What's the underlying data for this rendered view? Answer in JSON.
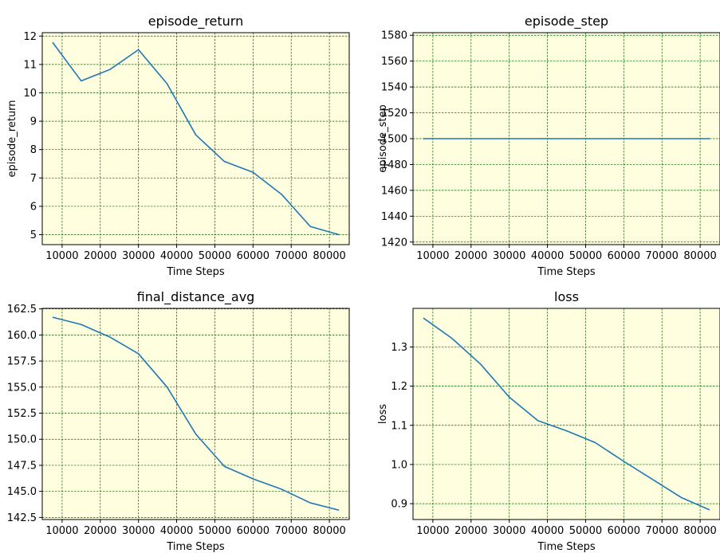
{
  "chart_data": [
    {
      "type": "line",
      "title": "episode_return",
      "xlabel": "Time Steps",
      "ylabel": "episode_return",
      "x": [
        7500,
        15000,
        22500,
        30000,
        37500,
        45000,
        52500,
        60000,
        67500,
        75000,
        82500
      ],
      "series": [
        {
          "values": [
            11.78,
            10.42,
            10.82,
            11.52,
            10.32,
            8.52,
            7.58,
            7.2,
            6.42,
            5.29,
            5.0
          ]
        }
      ],
      "xlim": [
        4800,
        85200
      ],
      "ylim": [
        4.65,
        12.12
      ],
      "xticks": [
        10000,
        20000,
        30000,
        40000,
        50000,
        60000,
        70000,
        80000
      ],
      "yticks": [
        5,
        6,
        7,
        8,
        9,
        10,
        11,
        12
      ],
      "grid": true,
      "colors": {
        "line": "#1f77b4",
        "plot_bg": "#ffffe0",
        "grid": "#006400"
      }
    },
    {
      "type": "line",
      "title": "episode_step",
      "xlabel": "Time Steps",
      "ylabel": "episode_step",
      "x": [
        7500,
        15000,
        22500,
        30000,
        37500,
        45000,
        52500,
        60000,
        67500,
        75000,
        82500
      ],
      "series": [
        {
          "values": [
            1500,
            1500,
            1500,
            1500,
            1500,
            1500,
            1500,
            1500,
            1500,
            1500,
            1500
          ]
        }
      ],
      "xlim": [
        4800,
        85200
      ],
      "ylim": [
        1418,
        1582
      ],
      "xticks": [
        10000,
        20000,
        30000,
        40000,
        50000,
        60000,
        70000,
        80000
      ],
      "yticks": [
        1420,
        1440,
        1460,
        1480,
        1500,
        1520,
        1540,
        1560,
        1580
      ],
      "grid": true,
      "colors": {
        "line": "#1f77b4",
        "plot_bg": "#ffffe0",
        "grid": "#006400"
      }
    },
    {
      "type": "line",
      "title": "final_distance_avg",
      "xlabel": "Time Steps",
      "ylabel": "",
      "x": [
        7500,
        15000,
        22500,
        30000,
        37500,
        45000,
        52500,
        60000,
        67500,
        75000,
        82500
      ],
      "series": [
        {
          "values": [
            161.7,
            161.0,
            159.8,
            158.2,
            155.0,
            150.5,
            147.4,
            146.2,
            145.2,
            143.9,
            143.2
          ]
        }
      ],
      "xlim": [
        4800,
        85200
      ],
      "ylim": [
        142.3,
        162.55
      ],
      "xticks": [
        10000,
        20000,
        30000,
        40000,
        50000,
        60000,
        70000,
        80000
      ],
      "yticks": [
        142.5,
        145.0,
        147.5,
        150.0,
        152.5,
        155.0,
        157.5,
        160.0,
        162.5
      ],
      "ytick_labels": [
        "142.5",
        "145.0",
        "147.5",
        "150.0",
        "152.5",
        "155.0",
        "157.5",
        "160.0",
        "162.5"
      ],
      "grid": true,
      "colors": {
        "line": "#1f77b4",
        "plot_bg": "#ffffe0",
        "grid": "#006400"
      }
    },
    {
      "type": "line",
      "title": "loss",
      "xlabel": "Time Steps",
      "ylabel": "loss",
      "x": [
        7500,
        15000,
        22500,
        30000,
        37500,
        45000,
        52500,
        60000,
        67500,
        75000,
        82500
      ],
      "series": [
        {
          "values": [
            1.374,
            1.322,
            1.256,
            1.172,
            1.112,
            1.086,
            1.056,
            1.008,
            0.962,
            0.916,
            0.884
          ]
        }
      ],
      "xlim": [
        4800,
        85200
      ],
      "ylim": [
        0.8595,
        1.3985
      ],
      "xticks": [
        10000,
        20000,
        30000,
        40000,
        50000,
        60000,
        70000,
        80000
      ],
      "yticks": [
        0.9,
        1.0,
        1.1,
        1.2,
        1.3
      ],
      "ytick_labels": [
        "0.9",
        "1.0",
        "1.1",
        "1.2",
        "1.3"
      ],
      "grid": true,
      "colors": {
        "line": "#1f77b4",
        "plot_bg": "#ffffe0",
        "grid": "#006400"
      }
    }
  ]
}
